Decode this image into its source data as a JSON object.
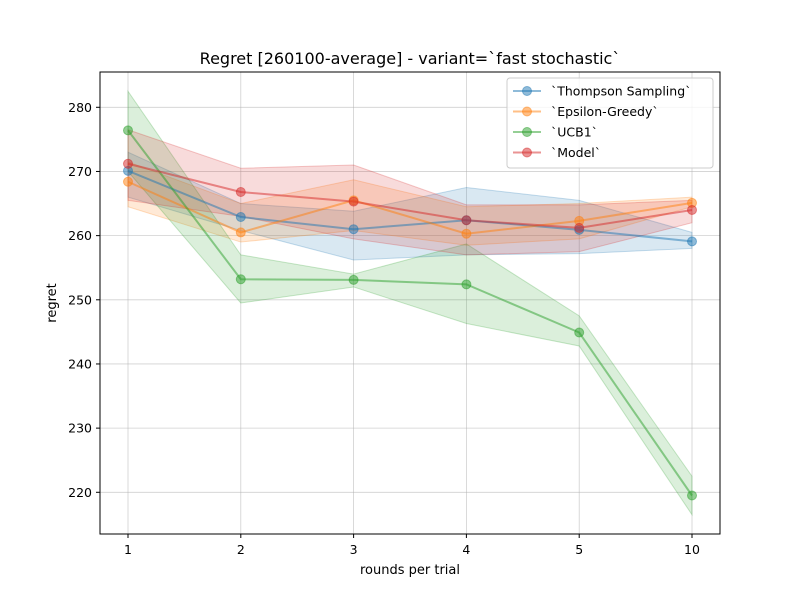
{
  "chart_data": {
    "type": "line",
    "title": "Regret [260100-average] - variant=`fast stochastic`",
    "xlabel": "rounds per trial",
    "ylabel": "regret",
    "categories": [
      "1",
      "2",
      "3",
      "4",
      "5",
      "10"
    ],
    "ylim": [
      213.5,
      285.5
    ],
    "yticks": [
      220,
      230,
      240,
      250,
      260,
      270,
      280
    ],
    "grid": true,
    "legend_position": "top-right",
    "series": [
      {
        "name": "`Thompson Sampling`",
        "color": "#1f77b4",
        "values": [
          270.1,
          262.9,
          261.0,
          262.4,
          260.9,
          259.1
        ],
        "lower": [
          266.0,
          260.8,
          256.2,
          257.0,
          257.2,
          258.0
        ],
        "upper": [
          273.0,
          265.0,
          263.8,
          267.5,
          265.5,
          260.5
        ]
      },
      {
        "name": "`Epsilon-Greedy`",
        "color": "#ff7f0e",
        "values": [
          268.4,
          260.5,
          265.5,
          260.3,
          262.3,
          265.1
        ],
        "lower": [
          264.5,
          259.0,
          260.8,
          258.5,
          259.5,
          264.5
        ],
        "upper": [
          271.5,
          265.0,
          268.7,
          264.5,
          265.0,
          266.0
        ]
      },
      {
        "name": "`UCB1`",
        "color": "#2ca02c",
        "values": [
          276.4,
          253.2,
          253.1,
          252.4,
          244.9,
          219.5
        ],
        "lower": [
          270.0,
          249.5,
          252.0,
          246.3,
          242.8,
          216.5
        ],
        "upper": [
          282.5,
          257.0,
          254.0,
          258.7,
          247.5,
          222.5
        ]
      },
      {
        "name": "`Model`",
        "color": "#d62728",
        "values": [
          271.2,
          266.8,
          265.3,
          262.4,
          261.2,
          264.0
        ],
        "lower": [
          265.5,
          263.0,
          259.5,
          257.0,
          257.5,
          262.0
        ],
        "upper": [
          276.5,
          270.5,
          271.0,
          264.8,
          264.8,
          265.5
        ]
      }
    ]
  }
}
